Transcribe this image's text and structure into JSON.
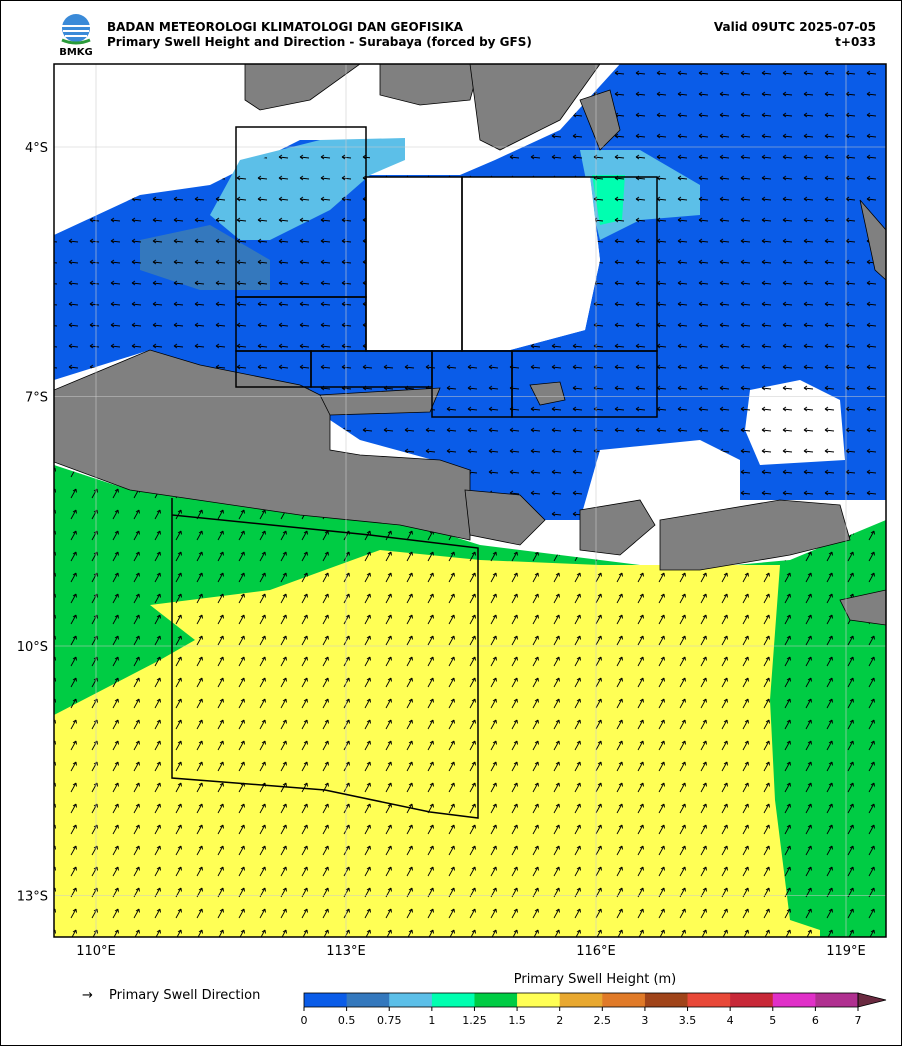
{
  "header": {
    "logo": "BMKG",
    "agency": "BADAN METEOROLOGI KLIMATOLOGI DAN GEOFISIKA",
    "title": "Primary Swell Height and Direction - Surabaya (forced by GFS)",
    "valid": "Valid 09UTC 2025-07-05",
    "step": "t+033"
  },
  "map": {
    "lat_labels": [
      "4°S",
      "7°S",
      "10°S",
      "13°S"
    ],
    "lon_labels": [
      "110°E",
      "113°E",
      "116°E",
      "119°E"
    ]
  },
  "legend": {
    "arrow": "→",
    "arrow_label": "Primary Swell Direction"
  },
  "colorbar": {
    "title": "Primary Swell Height (m)",
    "ticks": [
      0,
      0.5,
      0.75,
      1,
      1.25,
      1.5,
      2,
      2.5,
      3,
      3.5,
      4,
      5,
      6,
      7
    ],
    "colors": [
      "#0a5ce8",
      "#3478bd",
      "#5cbfe8",
      "#00ffb0",
      "#00cc44",
      "#ffff55",
      "#e8a830",
      "#e07a28",
      "#a0441a",
      "#e84838",
      "#c82838",
      "#e030c8",
      "#b03090",
      "#6a2a40"
    ]
  }
}
